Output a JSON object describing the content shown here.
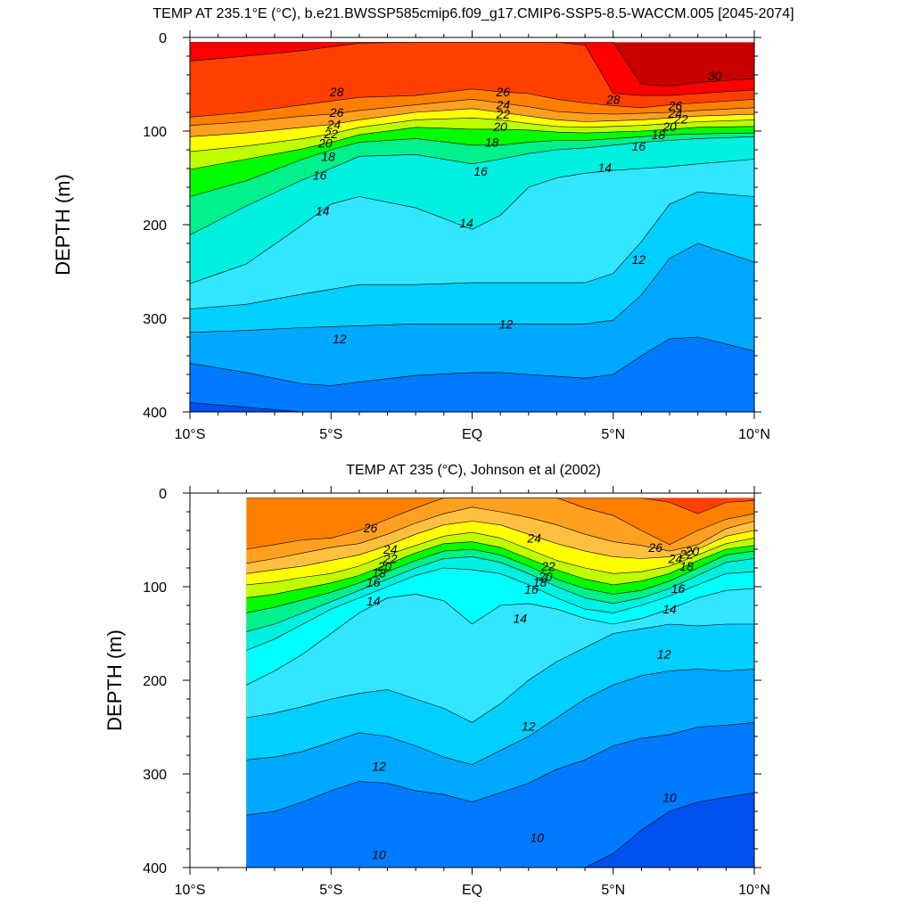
{
  "chart_data": [
    {
      "type": "contour",
      "title": "TEMP AT 235.1°E (°C), b.e21.BWSSP585cmip6.f09_g17.CMIP6-SSP5-8.5-WACCM.005 [2045-2074]",
      "ylabel": "DEPTH (m)",
      "xlabel": "",
      "xlim": [
        -10,
        10
      ],
      "ylim": [
        400,
        0
      ],
      "x_ticks": [
        {
          "value": -10,
          "label": "10°S"
        },
        {
          "value": -5,
          "label": "5°S"
        },
        {
          "value": 0,
          "label": "EQ"
        },
        {
          "value": 5,
          "label": "5°N"
        },
        {
          "value": 10,
          "label": "10°N"
        }
      ],
      "y_ticks": [
        {
          "value": 0,
          "label": "0"
        },
        {
          "value": 100,
          "label": "100"
        },
        {
          "value": 200,
          "label": "200"
        },
        {
          "value": 300,
          "label": "300"
        },
        {
          "value": 400,
          "label": "400"
        }
      ],
      "data_extent": {
        "lat": [
          -10,
          10
        ],
        "depth": [
          5,
          400
        ]
      },
      "isotherm_depths": {
        "lat": [
          -10,
          -8,
          -6,
          -5,
          -4,
          -2,
          0,
          1,
          2,
          3,
          4,
          5,
          6,
          7,
          8,
          10
        ],
        "levels": [
          {
            "temp": 30,
            "depth": [
              0,
              0,
              0,
              0,
              0,
              0,
              0,
              0,
              0,
              0,
              0,
              5,
              50,
              52,
              48,
              44
            ]
          },
          {
            "temp": 29,
            "depth": [
              25,
              20,
              14,
              10,
              6,
              4,
              0,
              0,
              0,
              0,
              8,
              60,
              62,
              62,
              60,
              56
            ]
          },
          {
            "temp": 28,
            "depth": [
              85,
              80,
              72,
              68,
              64,
              62,
              55,
              58,
              60,
              66,
              70,
              73,
              75,
              72,
              70,
              66
            ]
          },
          {
            "temp": 26,
            "depth": [
              94,
              90,
              84,
              82,
              78,
              72,
              66,
              70,
              74,
              79,
              81,
              82,
              81,
              80,
              78,
              75
            ]
          },
          {
            "temp": 24,
            "depth": [
              106,
              102,
              96,
              93,
              88,
              80,
              76,
              80,
              84,
              88,
              90,
              89,
              88,
              86,
              84,
              82
            ]
          },
          {
            "temp": 22,
            "depth": [
              122,
              116,
              108,
              103,
              96,
              88,
              86,
              88,
              92,
              95,
              96,
              95,
              94,
              92,
              90,
              88
            ]
          },
          {
            "temp": 20,
            "depth": [
              141,
              130,
              119,
              112,
              104,
              96,
              98,
              98,
              99,
              101,
              102,
              101,
              100,
              98,
              96,
              95
            ]
          },
          {
            "temp": 18,
            "depth": [
              170,
              153,
              130,
              120,
              112,
              108,
              115,
              115,
              112,
              110,
              110,
              108,
              106,
              104,
              103,
              102
            ]
          },
          {
            "temp": 16,
            "depth": [
              211,
              180,
              152,
              140,
              127,
              125,
              135,
              130,
              124,
              120,
              118,
              115,
              112,
              110,
              108,
              106
            ]
          },
          {
            "temp": 14,
            "depth": [
              263,
              242,
              200,
              178,
              170,
              182,
              205,
              190,
              160,
              150,
              145,
              142,
              140,
              138,
              135,
              130
            ]
          },
          {
            "temp": 13,
            "depth": [
              290,
              285,
              274,
              269,
              264,
              264,
              262,
              262,
              262,
              262,
              262,
              252,
              218,
              178,
              165,
              170
            ]
          },
          {
            "temp": 12,
            "depth": [
              315,
              313,
              310,
              309,
              308,
              306,
              306,
              306,
              306,
              306,
              306,
              302,
              275,
              236,
              220,
              240
            ]
          },
          {
            "temp": 11,
            "depth": [
              348,
              358,
              370,
              372,
              368,
              361,
              358,
              358,
              360,
              362,
              364,
              360,
              340,
              322,
              320,
              335
            ]
          },
          {
            "temp": 10,
            "depth": [
              390,
              395,
              400,
              400,
              400,
              400,
              400,
              400,
              400,
              400,
              400,
              400,
              400,
              400,
              400,
              400
            ]
          }
        ]
      },
      "contour_labels": [
        {
          "value": "28",
          "lat": -4.8,
          "depth": 58
        },
        {
          "value": "26",
          "lat": -4.8,
          "depth": 80
        },
        {
          "value": "24",
          "lat": -4.9,
          "depth": 93
        },
        {
          "value": "22",
          "lat": -5.0,
          "depth": 103
        },
        {
          "value": "20",
          "lat": -5.2,
          "depth": 113
        },
        {
          "value": "18",
          "lat": -5.1,
          "depth": 127
        },
        {
          "value": "16",
          "lat": -5.4,
          "depth": 147
        },
        {
          "value": "14",
          "lat": -5.3,
          "depth": 185
        },
        {
          "value": "12",
          "lat": -4.7,
          "depth": 322
        },
        {
          "value": "26",
          "lat": 1.1,
          "depth": 58
        },
        {
          "value": "24",
          "lat": 1.1,
          "depth": 72
        },
        {
          "value": "22",
          "lat": 1.1,
          "depth": 82
        },
        {
          "value": "20",
          "lat": 1.0,
          "depth": 95
        },
        {
          "value": "18",
          "lat": 0.7,
          "depth": 112
        },
        {
          "value": "16",
          "lat": 0.3,
          "depth": 143
        },
        {
          "value": "14",
          "lat": -0.2,
          "depth": 198
        },
        {
          "value": "12",
          "lat": 1.2,
          "depth": 306
        },
        {
          "value": "14",
          "lat": 4.7,
          "depth": 139
        },
        {
          "value": "28",
          "lat": 5.0,
          "depth": 66
        },
        {
          "value": "30",
          "lat": 8.6,
          "depth": 41
        },
        {
          "value": "26",
          "lat": 7.2,
          "depth": 73
        },
        {
          "value": "24",
          "lat": 7.2,
          "depth": 81
        },
        {
          "value": "22",
          "lat": 7.4,
          "depth": 87
        },
        {
          "value": "20",
          "lat": 7.0,
          "depth": 95
        },
        {
          "value": "18",
          "lat": 6.6,
          "depth": 104
        },
        {
          "value": "16",
          "lat": 5.9,
          "depth": 116
        },
        {
          "value": "12",
          "lat": 5.9,
          "depth": 237
        }
      ]
    },
    {
      "type": "contour",
      "title": "TEMP AT 235 (°C), Johnson et al (2002)",
      "ylabel": "DEPTH (m)",
      "xlabel": "",
      "xlim": [
        -10,
        10
      ],
      "ylim": [
        400,
        0
      ],
      "x_ticks": [
        {
          "value": -10,
          "label": "10°S"
        },
        {
          "value": -5,
          "label": "5°S"
        },
        {
          "value": 0,
          "label": "EQ"
        },
        {
          "value": 5,
          "label": "5°N"
        },
        {
          "value": 10,
          "label": "10°N"
        }
      ],
      "y_ticks": [
        {
          "value": 0,
          "label": "0"
        },
        {
          "value": 100,
          "label": "100"
        },
        {
          "value": 200,
          "label": "200"
        },
        {
          "value": 300,
          "label": "300"
        },
        {
          "value": 400,
          "label": "400"
        }
      ],
      "data_extent": {
        "lat": [
          -8,
          10
        ],
        "depth": [
          5,
          400
        ]
      },
      "isotherm_depths": {
        "lat": [
          -8,
          -7,
          -6,
          -5,
          -4,
          -3,
          -2,
          -1,
          0,
          1,
          2,
          3,
          4,
          5,
          6,
          7,
          8,
          9,
          10
        ],
        "levels": [
          {
            "temp": 27,
            "depth": [
              0,
              0,
              0,
              0,
              0,
              0,
              0,
              0,
              0,
              0,
              0,
              0,
              0,
              0,
              0,
              10,
              22,
              10,
              8
            ]
          },
          {
            "temp": 26,
            "depth": [
              60,
              55,
              50,
              48,
              40,
              28,
              16,
              5,
              0,
              0,
              0,
              5,
              16,
              24,
              40,
              55,
              40,
              28,
              22
            ]
          },
          {
            "temp": 25,
            "depth": [
              75,
              70,
              64,
              58,
              54,
              44,
              32,
              22,
              15,
              20,
              26,
              34,
              44,
              52,
              56,
              62,
              55,
              38,
              30
            ]
          },
          {
            "temp": 24,
            "depth": [
              86,
              82,
              78,
              72,
              66,
              56,
              44,
              34,
              30,
              34,
              44,
              54,
              62,
              68,
              70,
              68,
              60,
              46,
              40
            ]
          },
          {
            "temp": 22,
            "depth": [
              98,
              95,
              90,
              86,
              78,
              66,
              56,
              46,
              42,
              48,
              60,
              72,
              80,
              86,
              84,
              78,
              66,
              54,
              48
            ]
          },
          {
            "temp": 20,
            "depth": [
              112,
              108,
              102,
              96,
              88,
              76,
              64,
              54,
              52,
              58,
              70,
              82,
              92,
              98,
              94,
              86,
              72,
              60,
              56
            ]
          },
          {
            "temp": 18,
            "depth": [
              128,
              122,
              114,
              106,
              96,
              84,
              72,
              62,
              60,
              66,
              78,
              92,
              102,
              108,
              104,
              94,
              80,
              66,
              62
            ]
          },
          {
            "temp": 16,
            "depth": [
              148,
              140,
              128,
              116,
              104,
              92,
              80,
              70,
              68,
              74,
              86,
              100,
              112,
              118,
              112,
              102,
              88,
              74,
              70
            ]
          },
          {
            "temp": 15,
            "depth": [
              168,
              156,
              140,
              124,
              112,
              100,
              88,
              80,
              82,
              86,
              98,
              112,
              124,
              128,
              120,
              110,
              98,
              86,
              84
            ]
          },
          {
            "temp": 14,
            "depth": [
              205,
              190,
              172,
              150,
              128,
              112,
              108,
              115,
              140,
              120,
              118,
              124,
              134,
              140,
              134,
              124,
              112,
              104,
              102
            ]
          },
          {
            "temp": 13,
            "depth": [
              240,
              235,
              228,
              220,
              214,
              210,
              220,
              230,
              245,
              225,
              200,
              180,
              165,
              150,
              145,
              140,
              142,
              140,
              140
            ]
          },
          {
            "temp": 12,
            "depth": [
              285,
              282,
              276,
              266,
              256,
              260,
              270,
              282,
              290,
              275,
              260,
              240,
              220,
              205,
              195,
              190,
              188,
              190,
              188
            ]
          },
          {
            "temp": 11,
            "depth": [
              344,
              340,
              330,
              318,
              308,
              310,
              318,
              322,
              330,
              320,
              310,
              295,
              285,
              270,
              262,
              258,
              250,
              248,
              245
            ]
          },
          {
            "temp": 10,
            "depth": [
              400,
              400,
              400,
              400,
              400,
              400,
              400,
              400,
              400,
              400,
              400,
              400,
              400,
              385,
              360,
              340,
              330,
              325,
              320
            ]
          }
        ]
      },
      "contour_labels": [
        {
          "value": "26",
          "lat": -3.6,
          "depth": 37
        },
        {
          "value": "24",
          "lat": -2.9,
          "depth": 60
        },
        {
          "value": "22",
          "lat": -2.9,
          "depth": 70
        },
        {
          "value": "20",
          "lat": -3.1,
          "depth": 78
        },
        {
          "value": "18",
          "lat": -3.3,
          "depth": 85
        },
        {
          "value": "16",
          "lat": -3.5,
          "depth": 95
        },
        {
          "value": "14",
          "lat": -3.5,
          "depth": 115
        },
        {
          "value": "12",
          "lat": -3.3,
          "depth": 292
        },
        {
          "value": "10",
          "lat": -3.3,
          "depth": 386
        },
        {
          "value": "24",
          "lat": 2.2,
          "depth": 48
        },
        {
          "value": "22",
          "lat": 2.7,
          "depth": 78
        },
        {
          "value": "20",
          "lat": 2.6,
          "depth": 89
        },
        {
          "value": "18",
          "lat": 2.4,
          "depth": 95
        },
        {
          "value": "16",
          "lat": 2.1,
          "depth": 103
        },
        {
          "value": "14",
          "lat": 1.7,
          "depth": 134
        },
        {
          "value": "12",
          "lat": 2.0,
          "depth": 249
        },
        {
          "value": "10",
          "lat": 2.3,
          "depth": 368
        },
        {
          "value": "26",
          "lat": 6.5,
          "depth": 58
        },
        {
          "value": "24",
          "lat": 7.2,
          "depth": 70
        },
        {
          "value": "22",
          "lat": 7.6,
          "depth": 65
        },
        {
          "value": "20",
          "lat": 7.8,
          "depth": 62
        },
        {
          "value": "18",
          "lat": 7.6,
          "depth": 78
        },
        {
          "value": "16",
          "lat": 7.3,
          "depth": 102
        },
        {
          "value": "14",
          "lat": 7.0,
          "depth": 124
        },
        {
          "value": "12",
          "lat": 6.8,
          "depth": 172
        },
        {
          "value": "10",
          "lat": 7.0,
          "depth": 325
        }
      ]
    }
  ],
  "colors": {
    "t30_plus": "#c80000",
    "t29": "#ff0000",
    "t28": "#ff4000",
    "t26": "#ff7f00",
    "t25": "#ffa020",
    "t24": "#ffc040",
    "t22": "#ffff00",
    "t20": "#bfff00",
    "t18": "#00ff00",
    "t16": "#00f08c",
    "t15": "#00f0e0",
    "t14": "#00ffff",
    "t13": "#32e6ff",
    "t12": "#00cfff",
    "t11": "#00a8ff",
    "t10": "#007bff",
    "t_below": "#0050f0"
  }
}
